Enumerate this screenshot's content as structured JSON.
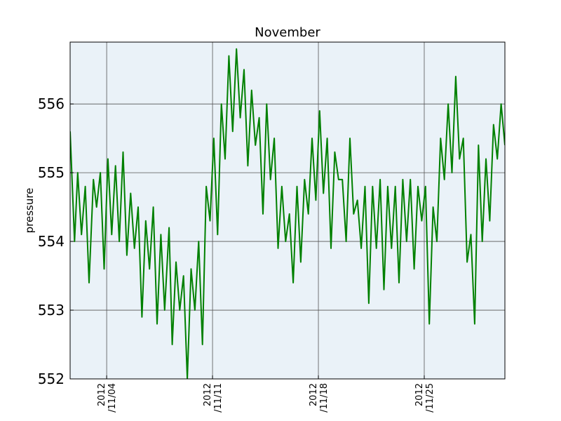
{
  "chart_data": {
    "type": "line",
    "title": "November",
    "xlabel": "",
    "ylabel": "pressure",
    "xlim": [
      "2012-11-01T14:00",
      "2012-11-30T08:00"
    ],
    "ylim": [
      552,
      556.9
    ],
    "yticks": [
      552,
      553,
      554,
      555,
      556
    ],
    "ytick_labels": [
      "552",
      "553",
      "554",
      "555",
      "556"
    ],
    "xticks": [
      {
        "date": "2012-11-04",
        "line1": "2012",
        "line2": "/11/04"
      },
      {
        "date": "2012-11-11",
        "line1": "2012",
        "line2": "/11/11"
      },
      {
        "date": "2012-11-18",
        "line1": "2012",
        "line2": "/11/18"
      },
      {
        "date": "2012-11-25",
        "line1": "2012",
        "line2": "/11/25"
      }
    ],
    "grid": true,
    "line_color": "#008000",
    "background_color": "#eaf2f8",
    "series": [
      {
        "name": "",
        "x": [
          "2012-11-01T14:00",
          "2012-11-01T21:00",
          "2012-11-02T02:00",
          "2012-11-02T08:00",
          "2012-11-02T14:00",
          "2012-11-02T20:00",
          "2012-11-03T03:00",
          "2012-11-03T08:00",
          "2012-11-03T14:00",
          "2012-11-03T20:00",
          "2012-11-04T02:00",
          "2012-11-04T08:00",
          "2012-11-04T14:00",
          "2012-11-04T20:00",
          "2012-11-05T02:00",
          "2012-11-05T08:00",
          "2012-11-05T14:00",
          "2012-11-05T20:00",
          "2012-11-06T02:00",
          "2012-11-06T08:00",
          "2012-11-06T14:00",
          "2012-11-06T20:00",
          "2012-11-07T02:00",
          "2012-11-07T08:00",
          "2012-11-07T14:00",
          "2012-11-07T20:00",
          "2012-11-08T03:00",
          "2012-11-08T08:00",
          "2012-11-08T14:00",
          "2012-11-08T20:00",
          "2012-11-09T02:00",
          "2012-11-09T08:00",
          "2012-11-09T14:00",
          "2012-11-09T20:00",
          "2012-11-10T02:00",
          "2012-11-10T08:00",
          "2012-11-10T14:00",
          "2012-11-10T20:00",
          "2012-11-11T02:00",
          "2012-11-11T08:00",
          "2012-11-11T14:00",
          "2012-11-11T20:00",
          "2012-11-12T02:00",
          "2012-11-12T08:00",
          "2012-11-12T14:00",
          "2012-11-12T20:00",
          "2012-11-13T02:00",
          "2012-11-13T08:00",
          "2012-11-13T14:00",
          "2012-11-13T20:00",
          "2012-11-14T02:00",
          "2012-11-14T08:00",
          "2012-11-14T14:00",
          "2012-11-14T20:00",
          "2012-11-15T02:00",
          "2012-11-15T08:00",
          "2012-11-15T14:00",
          "2012-11-15T20:00",
          "2012-11-16T02:00",
          "2012-11-16T08:00",
          "2012-11-16T14:00",
          "2012-11-16T20:00",
          "2012-11-17T02:00",
          "2012-11-17T08:00",
          "2012-11-17T14:00",
          "2012-11-17T20:00",
          "2012-11-18T02:00",
          "2012-11-18T08:00",
          "2012-11-18T14:00",
          "2012-11-18T20:00",
          "2012-11-19T02:00",
          "2012-11-19T08:00",
          "2012-11-19T14:00",
          "2012-11-19T20:00",
          "2012-11-20T02:00",
          "2012-11-20T08:00",
          "2012-11-20T14:00",
          "2012-11-20T20:00",
          "2012-11-21T02:00",
          "2012-11-21T08:00",
          "2012-11-21T14:00",
          "2012-11-21T20:00",
          "2012-11-22T02:00",
          "2012-11-22T08:00",
          "2012-11-22T14:00",
          "2012-11-22T20:00",
          "2012-11-23T02:00",
          "2012-11-23T08:00",
          "2012-11-23T14:00",
          "2012-11-23T20:00",
          "2012-11-24T02:00",
          "2012-11-24T08:00",
          "2012-11-24T14:00",
          "2012-11-24T20:00",
          "2012-11-25T02:00",
          "2012-11-25T08:00",
          "2012-11-25T14:00",
          "2012-11-25T20:00",
          "2012-11-26T02:00",
          "2012-11-26T08:00",
          "2012-11-26T14:00",
          "2012-11-26T20:00",
          "2012-11-27T02:00",
          "2012-11-27T08:00",
          "2012-11-27T14:00",
          "2012-11-27T20:00",
          "2012-11-28T02:00",
          "2012-11-28T08:00",
          "2012-11-28T14:00",
          "2012-11-28T20:00",
          "2012-11-29T02:00",
          "2012-11-29T08:00",
          "2012-11-29T14:00",
          "2012-11-29T20:00",
          "2012-11-30T02:00",
          "2012-11-30T08:00"
        ],
        "y": [
          555.6,
          554.0,
          555.0,
          554.1,
          554.8,
          553.4,
          554.9,
          554.5,
          555.0,
          553.6,
          555.2,
          554.1,
          555.1,
          554.0,
          555.3,
          553.8,
          554.7,
          553.9,
          554.5,
          552.9,
          554.3,
          553.6,
          554.5,
          552.8,
          554.1,
          553.0,
          554.2,
          552.5,
          553.7,
          553.0,
          553.5,
          552.0,
          553.6,
          553.0,
          554.0,
          552.5,
          554.8,
          554.3,
          555.5,
          554.1,
          556.0,
          555.2,
          556.7,
          555.6,
          556.8,
          555.8,
          556.5,
          555.1,
          556.2,
          555.4,
          555.8,
          554.4,
          556.0,
          554.9,
          555.5,
          553.9,
          554.8,
          554.0,
          554.4,
          553.4,
          554.8,
          553.7,
          554.9,
          554.4,
          555.5,
          554.6,
          555.9,
          554.7,
          555.5,
          553.9,
          555.3,
          554.9,
          554.9,
          554.0,
          555.5,
          554.4,
          554.6,
          553.9,
          554.8,
          553.1,
          554.8,
          553.9,
          554.9,
          553.3,
          554.8,
          553.9,
          554.8,
          553.4,
          554.9,
          554.0,
          554.9,
          553.6,
          554.8,
          554.3,
          554.8,
          552.8,
          554.5,
          554.0,
          555.5,
          554.9,
          556.0,
          555.0,
          556.4,
          555.2,
          555.5,
          553.7,
          554.1,
          552.8,
          555.4,
          554.0,
          555.2,
          554.3,
          555.7,
          555.2,
          556.0,
          555.4
        ]
      }
    ]
  }
}
